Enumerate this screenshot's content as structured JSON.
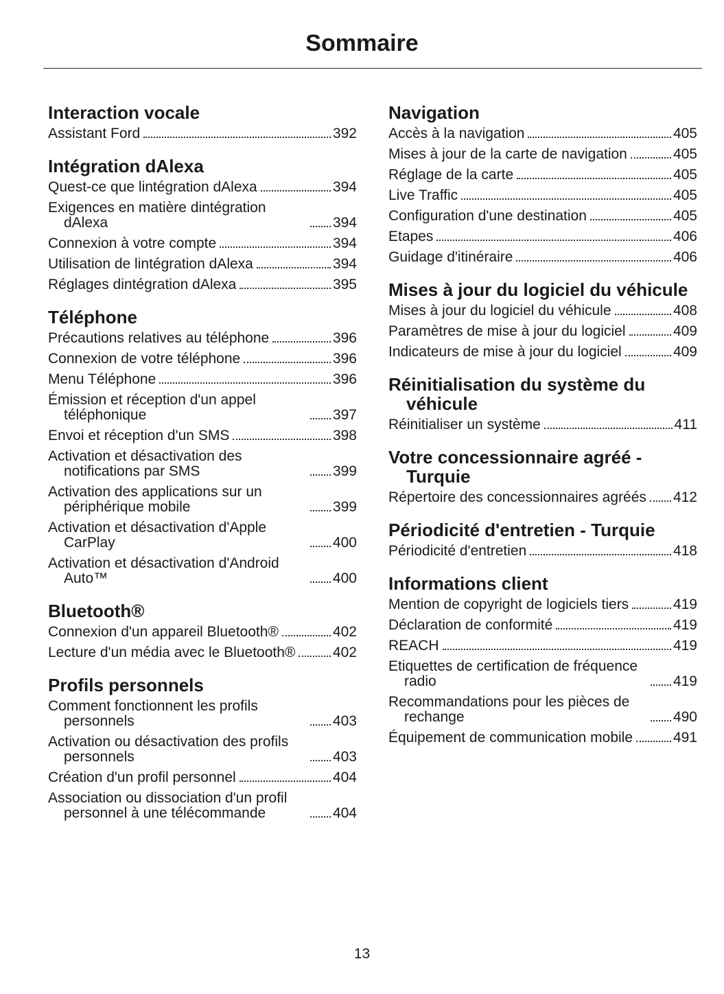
{
  "header": {
    "title": "Sommaire"
  },
  "columns": [
    {
      "sections": [
        {
          "title": "Interaction vocale",
          "entries": [
            {
              "label": "Assistant Ford",
              "page": 392
            }
          ]
        },
        {
          "title": "Intégration dAlexa",
          "entries": [
            {
              "label": "Quest-ce que lintégration dAlexa",
              "page": 394
            },
            {
              "label": "Exigences en matière dintégration dAlexa",
              "page": 394
            },
            {
              "label": "Connexion à votre compte",
              "page": 394
            },
            {
              "label": "Utilisation de lintégration dAlexa",
              "page": 394
            },
            {
              "label": "Réglages dintégration dAlexa",
              "page": 395
            }
          ]
        },
        {
          "title": "Téléphone",
          "entries": [
            {
              "label": "Précautions relatives au téléphone",
              "page": 396
            },
            {
              "label": "Connexion de votre téléphone",
              "page": 396
            },
            {
              "label": "Menu Téléphone",
              "page": 396
            },
            {
              "label": "Émission et réception d'un appel téléphonique",
              "page": 397
            },
            {
              "label": "Envoi et réception d'un SMS",
              "page": 398
            },
            {
              "label": "Activation et désactivation des notifications par SMS",
              "page": 399
            },
            {
              "label": "Activation des applications sur un périphérique mobile",
              "page": 399
            },
            {
              "label": "Activation et désactivation d'Apple CarPlay",
              "page": 400
            },
            {
              "label": "Activation et désactivation d'Android Auto™",
              "page": 400
            }
          ]
        },
        {
          "title": "Bluetooth®",
          "entries": [
            {
              "label": "Connexion d'un appareil Bluetooth®",
              "page": 402
            },
            {
              "label": "Lecture d'un média avec le Bluetooth®",
              "page": 402
            }
          ]
        },
        {
          "title": "Profils personnels",
          "entries": [
            {
              "label": "Comment fonctionnent les profils personnels",
              "page": 403
            },
            {
              "label": "Activation ou désactivation des profils personnels",
              "page": 403
            },
            {
              "label": "Création d'un profil personnel",
              "page": 404
            },
            {
              "label": "Association ou dissociation d'un profil personnel à une télécommande",
              "page": 404
            }
          ]
        }
      ]
    },
    {
      "sections": [
        {
          "title": "Navigation",
          "entries": [
            {
              "label": "Accès à la navigation",
              "page": 405
            },
            {
              "label": "Mises à jour de la carte de navigation",
              "page": 405
            },
            {
              "label": "Réglage de la carte",
              "page": 405
            },
            {
              "label": "Live Traffic",
              "page": 405
            },
            {
              "label": "Configuration d'une destination",
              "page": 405
            },
            {
              "label": "Etapes",
              "page": 406
            },
            {
              "label": "Guidage d'itinéraire",
              "page": 406
            }
          ]
        },
        {
          "title": "Mises à jour du logiciel du véhicule",
          "entries": [
            {
              "label": "Mises à jour du logiciel du véhicule",
              "page": 408
            },
            {
              "label": "Paramètres de mise à jour du logiciel",
              "page": 409
            },
            {
              "label": "Indicateurs de mise à jour du logiciel",
              "page": 409
            }
          ]
        },
        {
          "title": "Réinitialisation du système du véhicule",
          "entries": [
            {
              "label": "Réinitialiser un système",
              "page": 411
            }
          ]
        },
        {
          "title": "Votre concessionnaire agréé - Turquie",
          "entries": [
            {
              "label": "Répertoire des concessionnaires agréés",
              "page": 412
            }
          ]
        },
        {
          "title": "Périodicité d'entretien - Turquie",
          "entries": [
            {
              "label": "Périodicité d'entretien",
              "page": 418
            }
          ]
        },
        {
          "title": "Informations client",
          "entries": [
            {
              "label": "Mention de copyright de logiciels tiers",
              "page": 419
            },
            {
              "label": "Déclaration de conformité",
              "page": 419
            },
            {
              "label": "REACH",
              "page": 419
            },
            {
              "label": "Etiquettes de certification de fréquence radio",
              "page": 419
            },
            {
              "label": "Recommandations pour les pièces de rechange",
              "page": 490
            },
            {
              "label": "Équipement de communication mobile",
              "page": 491
            }
          ]
        }
      ]
    }
  ],
  "footer": {
    "page_number": "13"
  }
}
